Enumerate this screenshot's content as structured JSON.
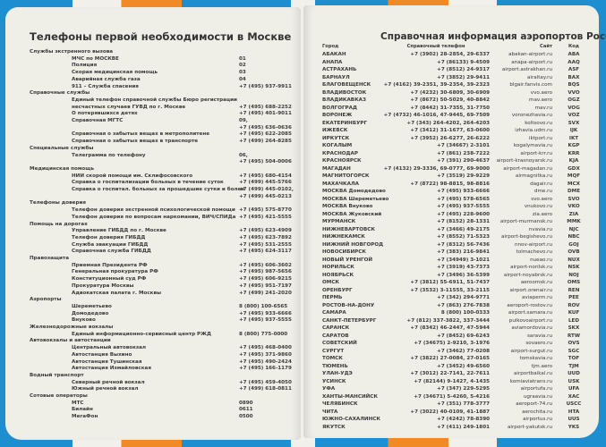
{
  "left": {
    "title": "Телефоны первой необходимости в Москве",
    "lines": [
      {
        "section": "Службы экстренного вызова"
      },
      {
        "name": "МЧС по МОСКВЕ",
        "phone": "01"
      },
      {
        "name": "Полиция",
        "phone": "02"
      },
      {
        "name": "Скорая медицинская помощь",
        "phone": "03"
      },
      {
        "name": "Аварийная служба газа",
        "phone": "04"
      },
      {
        "name": "911 – Служба спасения",
        "phone": "+7 (495) 937-9911"
      },
      {
        "section": "Справочные службы"
      },
      {
        "name": "Единый телефон справочной службы Бюро регистрации"
      },
      {
        "name": "несчастных случаев ГУВД по г. Москве",
        "phone": "+7 (495) 688-2252"
      },
      {
        "name": "О потерявшихся детях",
        "phone": "+7 (495) 401-9011"
      },
      {
        "name": "Справочная МГТС",
        "phone": "09,"
      },
      {
        "phone": "+7 (495) 636-0636"
      },
      {
        "name": "Справочная о забытых вещах в метрополитене",
        "phone": "+7 (495) 622-2085"
      },
      {
        "name": "Справочная о забытых вещах в транспорте",
        "phone": "+7 (499) 264-8285"
      },
      {
        "section": "Специальные службы"
      },
      {
        "name": "Телеграмма по телефону",
        "phone": "06,"
      },
      {
        "phone": "+7 (495) 504-0006"
      },
      {
        "section": "Медицинская помощь"
      },
      {
        "name": "НИИ скорой помощи им. Склифосовского",
        "phone": "+7 (495) 680-4154"
      },
      {
        "name": "Справка о госпитализации больных в течение суток",
        "phone": "+7 (499) 445-5766"
      },
      {
        "name": "Справка о госпитал. больных за прошедшие сутки и более",
        "phone": "+7 (499) 445-0102,"
      },
      {
        "phone": "+7 (499) 445-0213"
      },
      {
        "section": "Телефоны доверия"
      },
      {
        "name": "Телефон доверия экстренной психологической помощи",
        "phone": "+7 (495) 575-8770"
      },
      {
        "name": "Телефон доверия по вопросам наркомании, ВИЧ/СПИДа",
        "phone": "+7 (495) 421-5555"
      },
      {
        "section": "Помощь на дорогах"
      },
      {
        "name": "Управление ГИБДД по г. Москве",
        "phone": "+7 (495) 623-4909"
      },
      {
        "name": "Телефон доверия ГИБДД",
        "phone": "+7 (495) 623-7892"
      },
      {
        "name": "Служба эвакуации ГИБДД",
        "phone": "+7 (495) 531-2555"
      },
      {
        "name": "Справочная служба ГИБДД",
        "phone": "+7 (495) 624-3117"
      },
      {
        "section": "Правозащита"
      },
      {
        "name": "Приемная Президента РФ",
        "phone": "+7 (495) 606-3602"
      },
      {
        "name": "Генеральная прокуратура РФ",
        "phone": "+7 (495) 987-5656"
      },
      {
        "name": "Конституционный суд РФ",
        "phone": "+7 (495) 606-9215"
      },
      {
        "name": "Прокуратура Москвы",
        "phone": "+7 (495) 951-7197"
      },
      {
        "name": "Адвокатская палата г. Москвы",
        "phone": "+7 (499) 241-2020"
      },
      {
        "section": "Аэропорты"
      },
      {
        "name": "Шереметьево",
        "phone": "8 (800) 100-6565"
      },
      {
        "name": "Домодедово",
        "phone": "+7 (495) 933-6666"
      },
      {
        "name": "Внуково",
        "phone": "+7 (495) 937-5555"
      },
      {
        "section": "Железнодорожные вокзалы"
      },
      {
        "name": "Единый информационно-сервисный центр РЖД",
        "phone": "8 (800) 775-0000"
      },
      {
        "section": "Автовокзалы и автостанции"
      },
      {
        "name": "Центральный автовокзал",
        "phone": "+7 (495) 468-0400"
      },
      {
        "name": "Автостанция Выхино",
        "phone": "+7 (495) 371-9860"
      },
      {
        "name": "Автостанция Тушинская",
        "phone": "+7 (495) 490-2424"
      },
      {
        "name": "Автостанция Измайловская",
        "phone": "+7 (495) 166-1179"
      },
      {
        "section": "Водный транспорт"
      },
      {
        "name": "Северный речной вокзал",
        "phone": "+7 (495) 459-4050"
      },
      {
        "name": "Южный речной вокзал",
        "phone": "+7 (499) 618-0811"
      },
      {
        "section": "Сотовые операторы"
      },
      {
        "name": "МТС",
        "phone": "0890"
      },
      {
        "name": "Билайн",
        "phone": "0611"
      },
      {
        "name": "МегаФон",
        "phone": "0500"
      }
    ]
  },
  "right": {
    "title": "Справочная информация аэропортов России",
    "headers": {
      "city": "Город",
      "phone": "Справочный телефон",
      "site": "Сайт",
      "code": "Код"
    },
    "rows": [
      [
        "АБАКАН",
        "+7 (3902) 28-2854, 29-6337",
        "abakan-airport.ru",
        "ABA"
      ],
      [
        "АНАПА",
        "+7 (86133) 9-4509",
        "anapa-airport.ru",
        "AAQ"
      ],
      [
        "АСТРАХАНЬ",
        "+7 (8512) 24-9317",
        "airport.astrakhan.ru",
        "ASF"
      ],
      [
        "БАРНАУЛ",
        "+7 (3852) 29-9411",
        "airaltay.ru",
        "BAX"
      ],
      [
        "БЛАГОВЕЩЕНСК",
        "+7 (4162) 39-2351, 39-2354, 39-2323",
        "blgair.fanvis.com",
        "BQS"
      ],
      [
        "ВЛАДИВОСТОК",
        "+7 (4232) 30-6809, 30-6909",
        "vvo.aero",
        "VVO"
      ],
      [
        "ВЛАДИКАВКАЗ",
        "+7 (8672) 50-5029, 40-8842",
        "mav.aero",
        "OGZ"
      ],
      [
        "ВОЛГОГРАД",
        "+7 (8442) 31-7355, 31-7750",
        "mav.ru",
        "VOG"
      ],
      [
        "ВОРОНЕЖ",
        "+7 (4732) 46-1016, 47-9445, 69-7509",
        "voronezhavia.ru",
        "VOZ"
      ],
      [
        "ЕКАТЕРИНБУРГ",
        "+7 (343) 264-4202, 264-4203",
        "koltsovo.ru",
        "SVX"
      ],
      [
        "ИЖЕВСК",
        "+7 (3412) 31-1677, 63-0600",
        "izhavia.udm.ru",
        "IJK"
      ],
      [
        "ИРКУТСК",
        "+7 (3952) 26-6277, 26-6222",
        "iktport.ru",
        "IKT"
      ],
      [
        "КОГАЛЫМ",
        "+7 (34667) 2-3101",
        "kogalymavia.ru",
        "KGP"
      ],
      [
        "КРАСНОДАР",
        "+7 (861) 238-7222",
        "airport-krr.ru",
        "KRR"
      ],
      [
        "КРАСНОЯРСК",
        "+7 (391) 290-4637",
        "airport-krasnoyarsk.ru",
        "KJA"
      ],
      [
        "МАГАДАН",
        "+7 (4132) 29-3336, 69-0777, 69-9000",
        "airport-magadan.ru",
        "GDX"
      ],
      [
        "МАГНИТОГОРСК",
        "+7 (3519) 29-9229",
        "airmagnitka.ru",
        "MQF"
      ],
      [
        "МАХАЧКАЛА",
        "+7 (8722) 98-8815, 98-8816",
        "dagair.ru",
        "MCX"
      ],
      [
        "МОСКВА Домодедово",
        "+7 (495) 933-6666",
        "dme.ru",
        "DME"
      ],
      [
        "МОСКВА Шереметьево",
        "+7 (495) 578-6565",
        "svo.aero",
        "SVO"
      ],
      [
        "МОСКВА Внуково",
        "+7 (495) 937-5555",
        "vnukovo.ru",
        "VKO"
      ],
      [
        "МОСКВА Жуковский",
        "+7 (495) 228-9600",
        "zia.aero",
        "ZIA"
      ],
      [
        "МУРМАНСК",
        "+7 (8152) 28-1331",
        "airport-murmansk.ru",
        "MMK"
      ],
      [
        "НИЖНЕВАРТОВСК",
        "+7 (3466) 49-2175",
        "nvavia.ru",
        "NJC"
      ],
      [
        "НИЖНЕКАМСК",
        "+7 (8552) 71-5323",
        "airport-begishevo.ru",
        "NBC"
      ],
      [
        "НИЖНИЙ НОВГОРОД",
        "+7 (8312) 56-7436",
        "nnov-airport.ru",
        "GOJ"
      ],
      [
        "НОВОСИБИРСК",
        "+7 (383) 216-9841",
        "tolmachevo.ru",
        "OVB"
      ],
      [
        "НОВЫЙ УРЕНГОЙ",
        "+7 (34949) 3-1021",
        "nueao.ru",
        "NUX"
      ],
      [
        "НОРИЛЬСК",
        "+7 (3919) 43-7373",
        "airport-norilsk.ru",
        "NSK"
      ],
      [
        "НОЯБРЬСК",
        "+7 (3496) 36-5399",
        "airport-noyabrsk.ru",
        "NOJ"
      ],
      [
        "ОМСК",
        "+7 (3812) 55-6911, 51-7437",
        "aeroomsk.ru",
        "OMS"
      ],
      [
        "ОРЕНБУРГ",
        "+7 (3532) 3-11555, 33-2115",
        "airport.orenair.ru",
        "REN"
      ],
      [
        "ПЕРМЬ",
        "+7 (342) 294-9771",
        "aviaperm.ru",
        "PEE"
      ],
      [
        "РОСТОВ-НА-ДОНУ",
        "+7 (863) 276-7838",
        "aeroport-rostov.ru",
        "ROV"
      ],
      [
        "САМАРА",
        "8 (800) 100-0333",
        "airport.samara.ru",
        "KUF"
      ],
      [
        "САНКТ-ПЕТЕРБУРГ",
        "+7 (812) 337-3822, 337-3444",
        "pulkovoairport.ru",
        "LED"
      ],
      [
        "САРАНСК",
        "+7 (8342) 46-2447, 47-5944",
        "aviamordovia.ru",
        "SKX"
      ],
      [
        "САРАТОВ",
        "+7 (8452) 69-6243",
        "saravia.ru",
        "RTW"
      ],
      [
        "СОВЕТСКИЙ",
        "+7 (34675) 2-9210, 3-1976",
        "sovaero.ru",
        "OVS"
      ],
      [
        "СУРГУТ",
        "+7 (3462) 77-0208",
        "airport-surgut.ru",
        "SGC"
      ],
      [
        "ТОМСК",
        "+7 (3822) 27-0084, 27-0165",
        "tomskavia.ru",
        "TOF"
      ],
      [
        "ТЮМЕНЬ",
        "+7 (3452) 49-6560",
        "tjm.aero",
        "TJM"
      ],
      [
        "УЛАН-УДЭ",
        "+7 (3012) 22-7141, 22-7611",
        "airportbaikal.ru",
        "UUD"
      ],
      [
        "УСИНСК",
        "+7 (82144) 9-1427, 4-1435",
        "komiaviatrans.ru",
        "USK"
      ],
      [
        "УФА",
        "+7 (347) 229-5295",
        "airportufa.ru",
        "UFA"
      ],
      [
        "ХАНТЫ-МАНСИЙСК",
        "+7 (34671) 5-4260, 5-4216",
        "ugraavia.ru",
        "XAC"
      ],
      [
        "ЧЕЛЯБИНСК",
        "+7 (351) 778-3777",
        "aeroport-74.ru",
        "USCC"
      ],
      [
        "ЧИТА",
        "+7 (3022) 40-0109, 41-1887",
        "aerochita.ru",
        "HTA"
      ],
      [
        "ЮЖНО-САХАЛИНСК",
        "+7 (4242) 78-8390",
        "airportus.ru",
        "UUS"
      ],
      [
        "ЯКУТСК",
        "+7 (411) 249-1801",
        "airport-yakutsk.ru",
        "YKS"
      ]
    ]
  },
  "colors": {
    "cover_blue": "#1d8fd0",
    "cover_orange": "#f08a24",
    "page": "#efeee7"
  }
}
